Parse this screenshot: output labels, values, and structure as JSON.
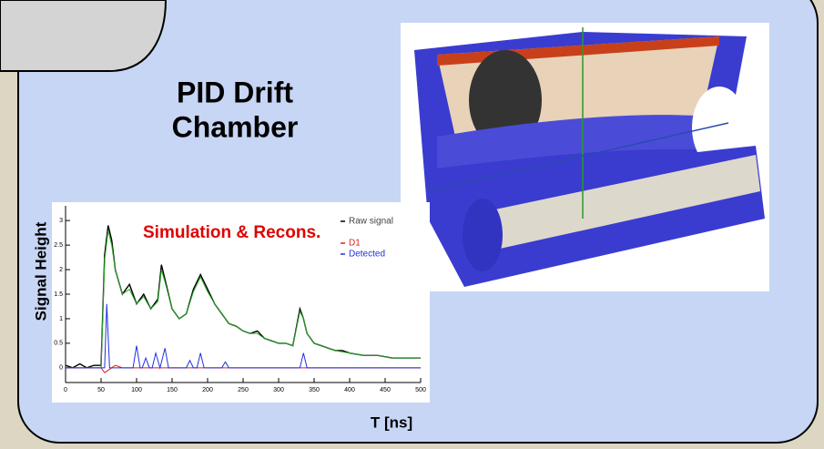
{
  "header": {
    "title_lines": [
      "PID Drift",
      "Chamber"
    ]
  },
  "chart_data": {
    "type": "line",
    "annotation": "Simulation & Recons.",
    "y_label": "Signal Height",
    "x_label": "T [ns]",
    "xlim": [
      0,
      500
    ],
    "xticks": [
      0,
      50,
      100,
      150,
      200,
      250,
      300,
      350,
      400,
      450,
      500
    ],
    "ylim": [
      -0.3,
      3.3
    ],
    "yticks": [
      0,
      0.5,
      1,
      1.5,
      2,
      2.5,
      3
    ],
    "series": [
      {
        "name": "Raw signal",
        "color": "#000000",
        "x": [
          0,
          10,
          20,
          30,
          40,
          50,
          55,
          60,
          65,
          70,
          80,
          90,
          100,
          110,
          120,
          130,
          135,
          140,
          150,
          160,
          170,
          180,
          190,
          200,
          210,
          220,
          230,
          240,
          250,
          260,
          270,
          280,
          290,
          300,
          310,
          320,
          330,
          335,
          340,
          350,
          360,
          370,
          380,
          390,
          400,
          420,
          440,
          460,
          480,
          500
        ],
        "values": [
          0.05,
          0,
          0.08,
          0,
          0.05,
          0.05,
          2.3,
          2.9,
          2.6,
          2.0,
          1.5,
          1.7,
          1.3,
          1.5,
          1.2,
          1.4,
          2.1,
          1.8,
          1.2,
          1.0,
          1.1,
          1.6,
          1.9,
          1.6,
          1.3,
          1.1,
          0.9,
          0.85,
          0.75,
          0.7,
          0.75,
          0.6,
          0.55,
          0.5,
          0.5,
          0.45,
          1.2,
          1.0,
          0.7,
          0.5,
          0.45,
          0.4,
          0.35,
          0.35,
          0.3,
          0.25,
          0.25,
          0.2,
          0.2,
          0.2
        ]
      },
      {
        "color": "#22aa22",
        "x": [
          0,
          50,
          55,
          60,
          65,
          70,
          80,
          90,
          100,
          110,
          120,
          130,
          135,
          140,
          150,
          160,
          170,
          180,
          190,
          200,
          210,
          220,
          230,
          240,
          250,
          260,
          270,
          280,
          290,
          300,
          310,
          320,
          330,
          335,
          340,
          350,
          360,
          380,
          400,
          420,
          440,
          460,
          480,
          500
        ],
        "values": [
          0,
          0,
          2.2,
          2.8,
          2.5,
          2.0,
          1.5,
          1.6,
          1.3,
          1.45,
          1.2,
          1.35,
          2.0,
          1.75,
          1.2,
          1.0,
          1.1,
          1.55,
          1.85,
          1.55,
          1.3,
          1.1,
          0.9,
          0.85,
          0.75,
          0.7,
          0.7,
          0.6,
          0.55,
          0.5,
          0.5,
          0.45,
          1.15,
          1.0,
          0.7,
          0.5,
          0.45,
          0.35,
          0.3,
          0.25,
          0.25,
          0.2,
          0.2,
          0.2
        ]
      },
      {
        "name": "D1",
        "color": "#e02020",
        "x": [
          0,
          50,
          55,
          60,
          65,
          70,
          80,
          100,
          200,
          300,
          400,
          500
        ],
        "values": [
          0,
          0,
          -0.1,
          -0.05,
          0,
          0.05,
          0,
          0,
          0,
          0,
          0,
          0
        ]
      },
      {
        "name": "Detected",
        "color": "#2030e0",
        "x": [
          0,
          50,
          55,
          58,
          62,
          95,
          100,
          105,
          108,
          113,
          118,
          122,
          127,
          133,
          140,
          145,
          170,
          175,
          180,
          185,
          190,
          195,
          220,
          225,
          230,
          330,
          335,
          340,
          500
        ],
        "values": [
          0,
          0,
          0,
          1.3,
          0,
          0,
          0.45,
          0,
          0,
          0.2,
          0,
          0,
          0.3,
          0,
          0.4,
          0,
          0,
          0.15,
          0,
          0,
          0.3,
          0,
          0,
          0.12,
          0,
          0,
          0.3,
          0,
          0
        ]
      }
    ]
  }
}
